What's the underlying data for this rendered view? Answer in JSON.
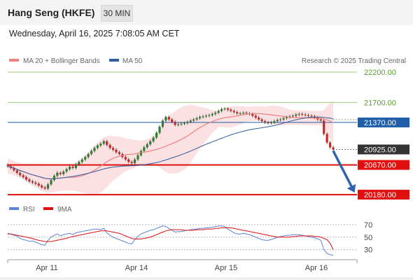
{
  "header": {
    "title": "Hang Seng (HKFE)",
    "timeframe": "30 MIN",
    "datetime": "Wednesday, April 16, 2025 7:08:05 AM CET"
  },
  "colors": {
    "ma20": "#f08080",
    "bollinger_fill": "#fbdede",
    "ma50": "#2e5e9e",
    "resistance": "#99cc77",
    "pivot": "#1f5ea8",
    "support": "#e01010",
    "current": "#333333",
    "candle_up": "#2f7d32",
    "candle_down": "#c62828",
    "rsi": "#5b84d6",
    "rsi_ma": "#e01010",
    "arrow": "#2e64ad"
  },
  "legend": {
    "ma": "MA 20 + Bollinger Bands",
    "ma50": "MA 50",
    "source": "Research © 2025 Trading Central",
    "rsi": "RSI",
    "rsi_ma": "9MA"
  },
  "chart_data": [
    {
      "type": "candlestick",
      "x_labels": [
        "Apr 11",
        "Apr 14",
        "Apr 15",
        "Apr 16"
      ],
      "ylim": [
        20100,
        22350
      ],
      "levels": [
        {
          "value": 22200,
          "label": "22200.00",
          "kind": "resistance"
        },
        {
          "value": 21700,
          "label": "21700.00",
          "kind": "resistance"
        },
        {
          "value": 21370,
          "label": "21370.00",
          "kind": "pivot"
        },
        {
          "value": 20925,
          "label": "20925.00",
          "kind": "current"
        },
        {
          "value": 20670,
          "label": "20670.00",
          "kind": "support"
        },
        {
          "value": 20180,
          "label": "20180.00",
          "kind": "support"
        }
      ],
      "close": [
        20650,
        20620,
        20580,
        20540,
        20500,
        20470,
        20430,
        20400,
        20380,
        20360,
        20330,
        20300,
        20280,
        20350,
        20420,
        20490,
        20540,
        20520,
        20560,
        20600,
        20640,
        20620,
        20680,
        20720,
        20760,
        20800,
        20850,
        20900,
        20950,
        20990,
        21020,
        21060,
        21000,
        20950,
        20920,
        20880,
        20850,
        20800,
        20760,
        20720,
        20700,
        20760,
        20830,
        20900,
        20960,
        21010,
        21060,
        21120,
        21200,
        21300,
        21400,
        21460,
        21420,
        21380,
        21330,
        21340,
        21350,
        21360,
        21380,
        21400,
        21420,
        21440,
        21460,
        21470,
        21480,
        21490,
        21510,
        21530,
        21560,
        21590,
        21600,
        21580,
        21560,
        21540,
        21520,
        21520,
        21530,
        21520,
        21510,
        21480,
        21450,
        21420,
        21390,
        21370,
        21360,
        21370,
        21390,
        21410,
        21420,
        21440,
        21460,
        21470,
        21480,
        21500,
        21510,
        21500,
        21490,
        21480,
        21470,
        21450,
        21420,
        21400,
        21180,
        21040,
        20960,
        20925
      ]
    },
    {
      "type": "line",
      "name": "RSI",
      "levels": [
        70,
        50,
        30
      ],
      "ylim": [
        15,
        80
      ],
      "x_labels": [
        "Apr 11",
        "Apr 14",
        "Apr 15",
        "Apr 16"
      ],
      "series": [
        {
          "name": "RSI",
          "values": [
            56,
            55,
            53,
            52,
            48,
            46,
            45,
            43,
            44,
            42,
            40,
            38,
            37,
            45,
            50,
            53,
            55,
            52,
            54,
            55,
            56,
            54,
            57,
            58,
            59,
            60,
            61,
            62,
            63,
            63,
            62,
            64,
            57,
            53,
            50,
            48,
            46,
            44,
            42,
            40,
            39,
            46,
            51,
            55,
            57,
            59,
            61,
            62,
            64,
            66,
            68,
            67,
            64,
            61,
            58,
            59,
            59,
            60,
            61,
            62,
            63,
            63,
            64,
            64,
            65,
            65,
            66,
            67,
            68,
            68,
            67,
            63,
            60,
            57,
            55,
            55,
            56,
            55,
            54,
            52,
            50,
            48,
            46,
            45,
            45,
            46,
            48,
            50,
            51,
            52,
            53,
            53,
            54,
            54,
            54,
            53,
            52,
            51,
            50,
            49,
            47,
            45,
            30,
            24,
            22,
            21
          ]
        },
        {
          "name": "9MA",
          "values": [
            55,
            55,
            54,
            53,
            52,
            51,
            50,
            49,
            48,
            46,
            45,
            44,
            43,
            43,
            43,
            44,
            45,
            46,
            47,
            48,
            50,
            51,
            52,
            53,
            54,
            55,
            56,
            57,
            58,
            59,
            60,
            60,
            60,
            59,
            58,
            57,
            56,
            54,
            52,
            50,
            48,
            47,
            47,
            47,
            48,
            49,
            50,
            52,
            54,
            56,
            58,
            60,
            61,
            62,
            62,
            62,
            62,
            61,
            61,
            61,
            61,
            62,
            62,
            62,
            63,
            63,
            63,
            64,
            64,
            65,
            65,
            65,
            65,
            64,
            63,
            62,
            61,
            60,
            59,
            58,
            57,
            56,
            55,
            54,
            53,
            52,
            51,
            50,
            50,
            50,
            50,
            50,
            51,
            51,
            52,
            52,
            52,
            52,
            52,
            51,
            51,
            50,
            48,
            46,
            40,
            30
          ]
        }
      ]
    }
  ]
}
